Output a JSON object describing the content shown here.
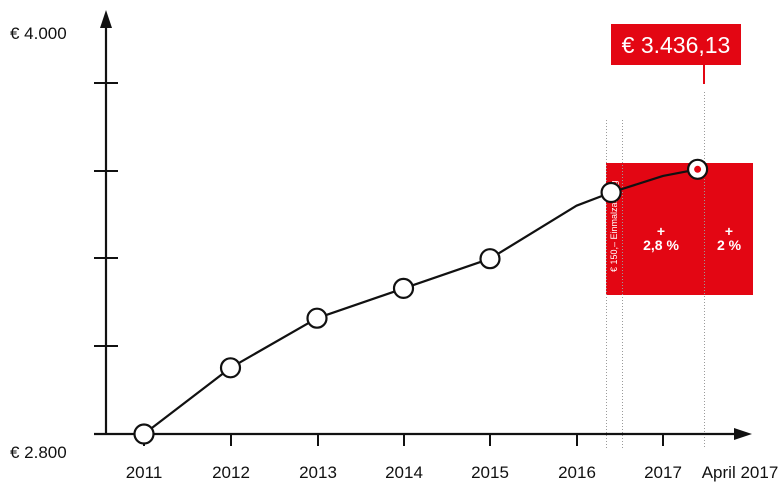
{
  "colors": {
    "accent": "#e30613",
    "line": "#111111",
    "guide": "#9a9a9a"
  },
  "chart_data": {
    "type": "line",
    "y_top_label": "€ 4.000",
    "y_bottom_label": "€ 2.800",
    "ylim": [
      2800,
      4000
    ],
    "x_tick_labels": [
      "2011",
      "2012",
      "2013",
      "2014",
      "2015",
      "2016",
      "2017",
      "April 2017"
    ],
    "series": [
      {
        "points": [
          {
            "x": 2011.0,
            "y": 2800
          },
          {
            "x": 2012.0,
            "y": 3000
          },
          {
            "x": 2013.0,
            "y": 3150
          },
          {
            "x": 2014.0,
            "y": 3240
          },
          {
            "x": 2015.0,
            "y": 3330
          },
          {
            "x": 2016.4,
            "y": 3530
          },
          {
            "x": 2017.4,
            "y": 3600
          }
        ],
        "path_via": [
          {
            "x": 2016.0,
            "y": 3490
          },
          {
            "x": 2017.0,
            "y": 3580
          }
        ]
      }
    ],
    "callout": {
      "text": "€ 3.436,13"
    },
    "annotation_box": {
      "rotated_text": "€ 150,– Einmalzahlung",
      "increase_1": "2,8 %",
      "increase_2": "2 %",
      "plus_sign": "+"
    }
  }
}
